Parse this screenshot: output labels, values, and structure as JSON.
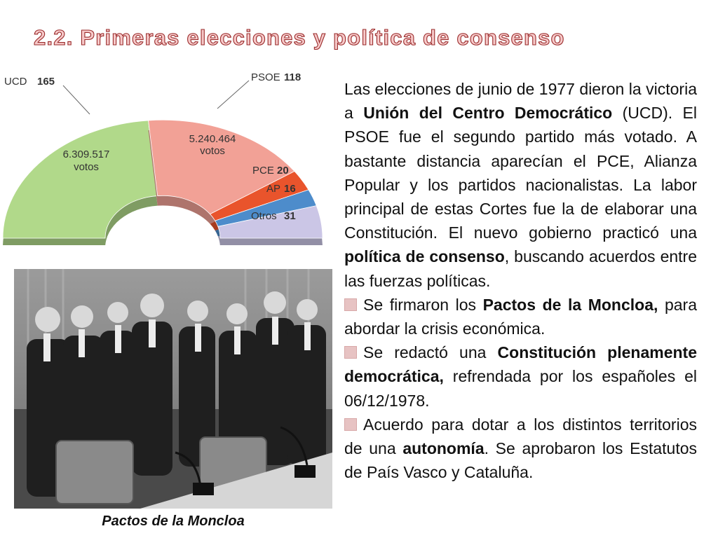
{
  "title": "2.2. Primeras elecciones y política de consenso",
  "chart_data": {
    "type": "pie",
    "style": "half-donut",
    "series": [
      {
        "name": "UCD",
        "value": 165,
        "votes": "6.309.517",
        "votes_word": "votos",
        "color": "#b1d98a"
      },
      {
        "name": "PSOE",
        "value": 118,
        "votes": "5.240.464",
        "votes_word": "votos",
        "color": "#f2a196"
      },
      {
        "name": "PCE",
        "value": 20,
        "color": "#e9542c"
      },
      {
        "name": "AP",
        "value": 16,
        "color": "#4d8ccb"
      },
      {
        "name": "Otros",
        "value": 31,
        "color": "#cbc6e6"
      }
    ]
  },
  "photo": {
    "caption": "Pactos de la Moncloa"
  },
  "body": {
    "p1_a": "Las elecciones de junio de 1977 dieron la victoria a ",
    "p1_b": "Unión del Centro Democrático",
    "p1_c": " (UCD). El PSOE fue el segundo partido más votado. A bastante distancia aparecían el PCE, Alianza Popular y los partidos nacionalistas. La labor principal de estas Cortes fue la de elaborar una Constitución. El nuevo gobierno practicó una ",
    "p1_d": "política de consenso",
    "p1_e": ", buscando acuerdos entre las fuerzas políticas.",
    "b1_a": "Se firmaron los ",
    "b1_b": "Pactos de la Moncloa,",
    "b1_c": " para abordar la crisis económica.",
    "b2_a": "Se redactó una ",
    "b2_b": "Constitución plenamente democrática,",
    "b2_c": " refrendada por los españoles el 06/12/1978.",
    "b3_a": "Acuerdo para dotar a los distintos territorios de una ",
    "b3_b": "autonomía",
    "b3_c": ". Se aprobaron los Estatutos de País Vasco y Cataluña."
  }
}
